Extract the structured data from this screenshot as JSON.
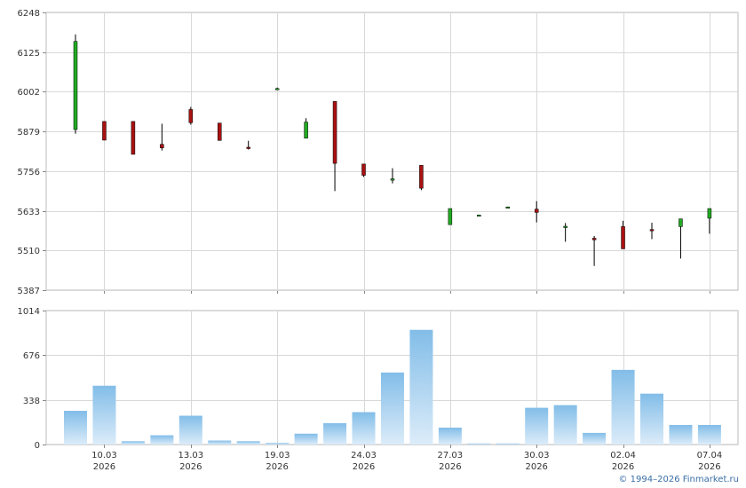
{
  "chart_data": [
    {
      "type": "candlestick",
      "title": "",
      "ylim": [
        5387,
        6248
      ],
      "y_ticks": [
        "6248",
        "6125",
        "6002",
        "5879",
        "5756",
        "5633",
        "5510",
        "5387"
      ],
      "grid": true,
      "colors": {
        "up": "#22aa22",
        "down": "#aa1111",
        "wick": "#000000"
      },
      "candles": [
        {
          "open": 5885,
          "high": 6180,
          "low": 5872,
          "close": 6158
        },
        {
          "open": 5910,
          "high": 5910,
          "low": 5852,
          "close": 5852
        },
        {
          "open": 5910,
          "high": 5910,
          "low": 5808,
          "close": 5808
        },
        {
          "open": 5839,
          "high": 5903,
          "low": 5820,
          "close": 5828
        },
        {
          "open": 5947,
          "high": 5955,
          "low": 5900,
          "close": 5906
        },
        {
          "open": 5905,
          "high": 5905,
          "low": 5851,
          "close": 5851
        },
        {
          "open": 5830,
          "high": 5850,
          "low": 5823,
          "close": 5828
        },
        {
          "open": 6012,
          "high": 6015,
          "low": 6008,
          "close": 6012
        },
        {
          "open": 5858,
          "high": 5920,
          "low": 5858,
          "close": 5908
        },
        {
          "open": 5972,
          "high": 5972,
          "low": 5694,
          "close": 5780
        },
        {
          "open": 5778,
          "high": 5778,
          "low": 5738,
          "close": 5743
        },
        {
          "open": 5730,
          "high": 5765,
          "low": 5718,
          "close": 5732
        },
        {
          "open": 5774,
          "high": 5774,
          "low": 5697,
          "close": 5703
        },
        {
          "open": 5590,
          "high": 5640,
          "low": 5590,
          "close": 5640
        },
        {
          "open": 5620,
          "high": 5621,
          "low": 5619,
          "close": 5620
        },
        {
          "open": 5645,
          "high": 5646,
          "low": 5644,
          "close": 5645
        },
        {
          "open": 5638,
          "high": 5663,
          "low": 5597,
          "close": 5628
        },
        {
          "open": 5585,
          "high": 5595,
          "low": 5537,
          "close": 5585
        },
        {
          "open": 5548,
          "high": 5555,
          "low": 5462,
          "close": 5543
        },
        {
          "open": 5584,
          "high": 5602,
          "low": 5515,
          "close": 5515
        },
        {
          "open": 5575,
          "high": 5596,
          "low": 5545,
          "close": 5571
        },
        {
          "open": 5584,
          "high": 5608,
          "low": 5485,
          "close": 5608
        },
        {
          "open": 5610,
          "high": 5640,
          "low": 5562,
          "close": 5640
        }
      ]
    },
    {
      "type": "bar",
      "title": "",
      "ylim": [
        0,
        1014
      ],
      "y_ticks": [
        "1014",
        "676",
        "338",
        "0"
      ],
      "grid": true,
      "bar_color": "#82bde8",
      "values": [
        255,
        445,
        25,
        70,
        218,
        30,
        25,
        12,
        82,
        162,
        245,
        545,
        868,
        128,
        8,
        8,
        278,
        298,
        88,
        565,
        385,
        148,
        148
      ]
    }
  ],
  "x_axis": {
    "labels": [
      {
        "index": 1,
        "day": "10.03",
        "year": "2026"
      },
      {
        "index": 4,
        "day": "13.03",
        "year": "2026"
      },
      {
        "index": 7,
        "day": "19.03",
        "year": "2026"
      },
      {
        "index": 10,
        "day": "24.03",
        "year": "2026"
      },
      {
        "index": 13,
        "day": "27.03",
        "year": "2026"
      },
      {
        "index": 16,
        "day": "30.03",
        "year": "2026"
      },
      {
        "index": 19,
        "day": "02.04",
        "year": "2026"
      },
      {
        "index": 22,
        "day": "07.04",
        "year": "2026"
      }
    ]
  },
  "footer": {
    "copyright": "© 1994–2026 Finmarket.ru"
  }
}
